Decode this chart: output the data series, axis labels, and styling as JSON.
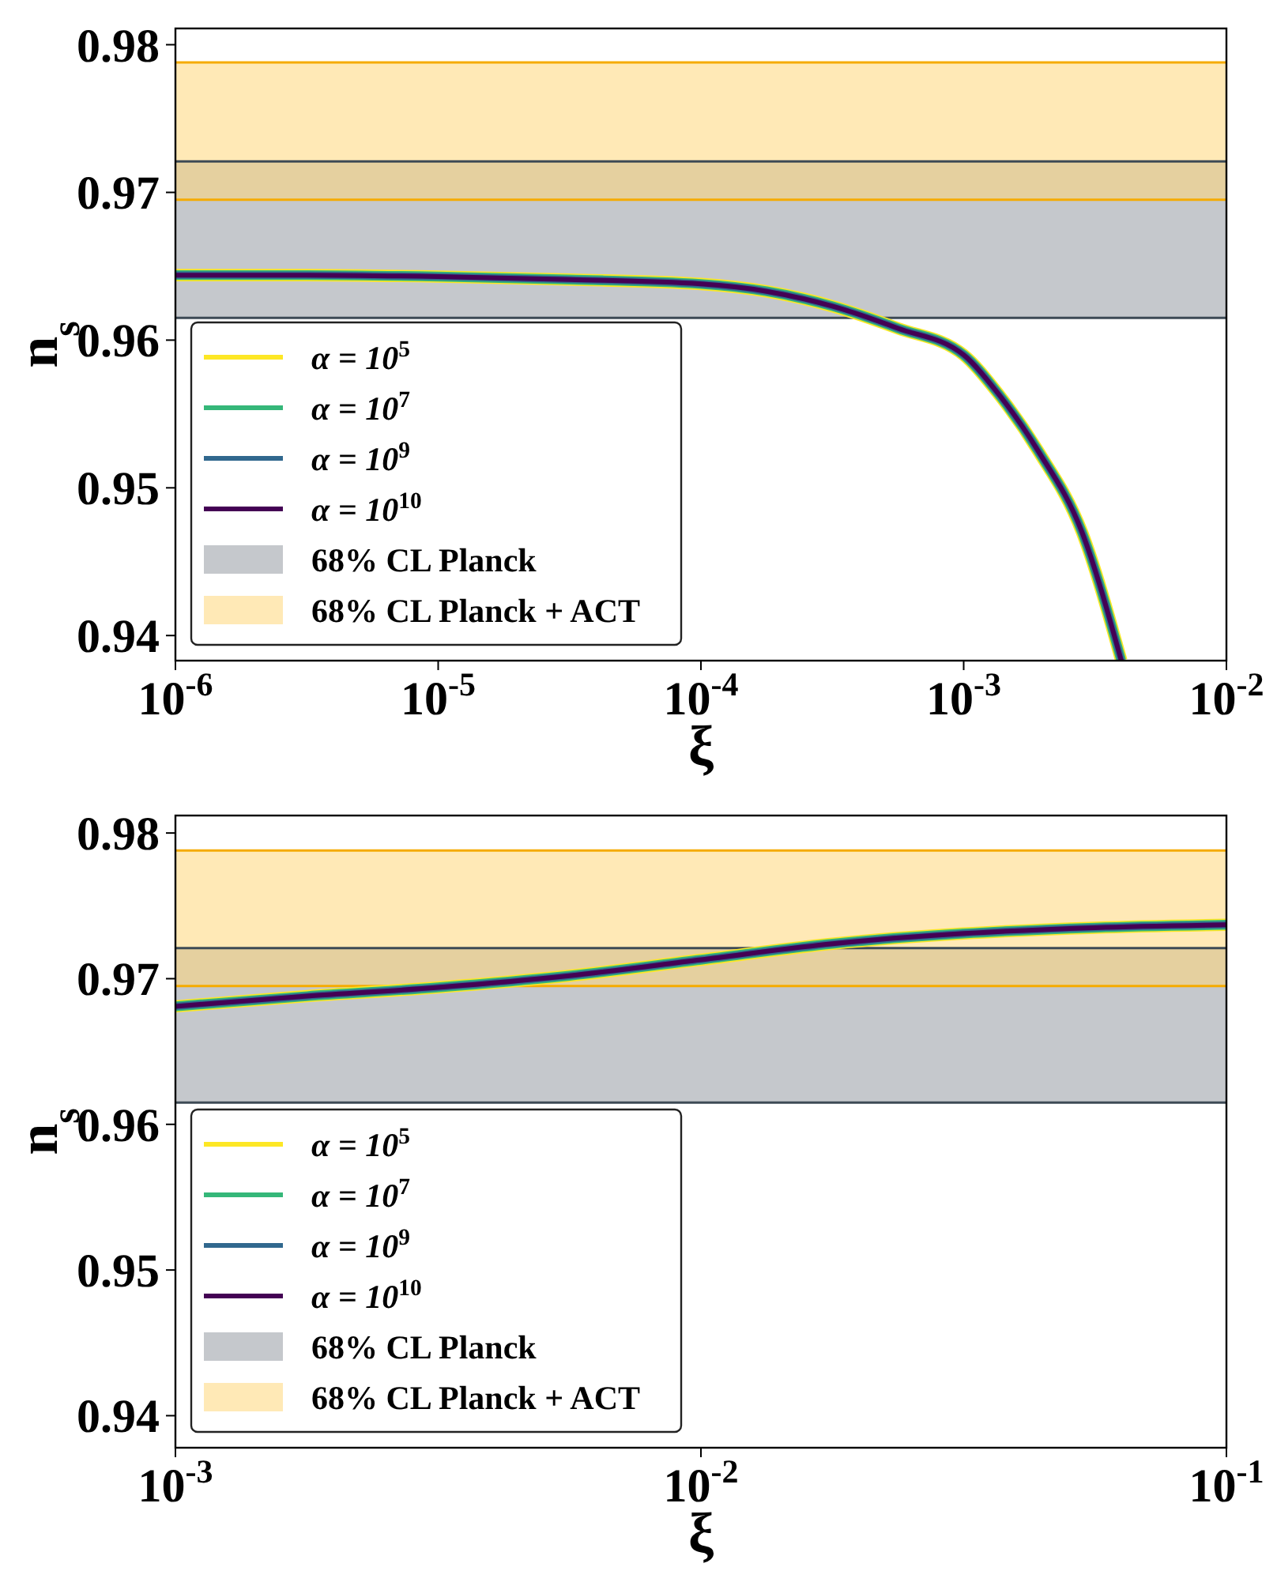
{
  "chart_data": [
    {
      "type": "line",
      "xlabel": "ξ",
      "ylabel": "n$_{s}$",
      "log": "x",
      "grid": false,
      "legend": "lower left",
      "line_style": "solid",
      "ref_lines": [
        {
          "axis": "y",
          "value": 0.9615,
          "color": "#3d4a55"
        },
        {
          "axis": "y",
          "value": 0.9721,
          "color": "#3d4a55"
        },
        {
          "axis": "y",
          "value": 0.9695,
          "color": "#f5ab00"
        },
        {
          "axis": "y",
          "value": 0.9788,
          "color": "#f5ab00"
        }
      ],
      "xlim": [
        1e-06,
        0.01
      ],
      "xticks": [
        {
          "value": 1e-06,
          "label": "10$^{-6}$"
        },
        {
          "value": 1e-05,
          "label": "10$^{-5}$"
        },
        {
          "value": 0.0001,
          "label": "10$^{-4}$"
        },
        {
          "value": 0.001,
          "label": "10$^{-3}$"
        },
        {
          "value": 0.01,
          "label": "10$^{-2}$"
        }
      ],
      "ylim": [
        0.9383,
        0.9811
      ],
      "yticks": [
        0.94,
        0.95,
        0.96,
        0.97,
        0.98
      ],
      "x": [
        1e-06,
        3.16e-06,
        1e-05,
        3.16e-05,
        0.0001,
        0.000178,
        0.000316,
        0.000562,
        0.001,
        0.00135,
        0.00192,
        0.00282,
        0.00398
      ],
      "series": [
        {
          "name": "α = 10$^{5}$",
          "color": "#fde725",
          "values": [
            0.9644,
            0.9644,
            0.9643,
            0.9641,
            0.9638,
            0.9633,
            0.9623,
            0.9608,
            0.959,
            0.9564,
            0.9525,
            0.947,
            0.9383
          ]
        },
        {
          "name": "α = 10$^{7}$",
          "color": "#35b779",
          "values": [
            0.9644,
            0.9644,
            0.9643,
            0.9641,
            0.9638,
            0.9633,
            0.9623,
            0.9608,
            0.959,
            0.9564,
            0.9525,
            0.947,
            0.9383
          ]
        },
        {
          "name": "α = 10$^{9}$",
          "color": "#31688e",
          "values": [
            0.9644,
            0.9644,
            0.9643,
            0.9641,
            0.9638,
            0.9633,
            0.9623,
            0.9608,
            0.959,
            0.9564,
            0.9525,
            0.947,
            0.9383
          ]
        },
        {
          "name": "α = 10$^{10}$",
          "color": "#440154",
          "values": [
            0.9644,
            0.9644,
            0.9643,
            0.9641,
            0.9638,
            0.9633,
            0.9623,
            0.9608,
            0.959,
            0.9564,
            0.9525,
            0.947,
            0.9383
          ]
        }
      ],
      "bands": [
        {
          "axis": "y",
          "from": 0.9615,
          "to": 0.9721,
          "label": "68% CL Planck",
          "color": "#c5c8cc"
        },
        {
          "axis": "y",
          "from": 0.9695,
          "to": 0.9788,
          "label": "68% CL Planck + ACT",
          "color": "#ffd77a"
        }
      ]
    },
    {
      "type": "line",
      "xlabel": "ξ",
      "ylabel": "n$_{s}$",
      "log": "x",
      "grid": false,
      "legend": "lower left",
      "line_style": "solid",
      "ref_lines": [
        {
          "axis": "y",
          "value": 0.9615,
          "color": "#3d4a55"
        },
        {
          "axis": "y",
          "value": 0.9721,
          "color": "#3d4a55"
        },
        {
          "axis": "y",
          "value": 0.9695,
          "color": "#f5ab00"
        },
        {
          "axis": "y",
          "value": 0.9788,
          "color": "#f5ab00"
        }
      ],
      "xlim": [
        0.001,
        0.1
      ],
      "xticks": [
        {
          "value": 0.001,
          "label": "10$^{-3}$"
        },
        {
          "value": 0.01,
          "label": "10$^{-2}$"
        },
        {
          "value": 0.1,
          "label": "10$^{-1}$"
        }
      ],
      "ylim": [
        0.9378,
        0.9812
      ],
      "yticks": [
        0.94,
        0.95,
        0.96,
        0.97,
        0.98
      ],
      "x": [
        0.001,
        0.00178,
        0.00316,
        0.00562,
        0.01,
        0.0178,
        0.0316,
        0.0562,
        0.1
      ],
      "series": [
        {
          "name": "α = 10$^{5}$",
          "color": "#fde725",
          "values": [
            0.9681,
            0.9688,
            0.9694,
            0.9702,
            0.9713,
            0.9724,
            0.9731,
            0.9735,
            0.9737
          ]
        },
        {
          "name": "α = 10$^{7}$",
          "color": "#35b779",
          "values": [
            0.9681,
            0.9688,
            0.9694,
            0.9702,
            0.9713,
            0.9724,
            0.9731,
            0.9735,
            0.9737
          ]
        },
        {
          "name": "α = 10$^{9}$",
          "color": "#31688e",
          "values": [
            0.9681,
            0.9688,
            0.9694,
            0.9702,
            0.9713,
            0.9724,
            0.9731,
            0.9735,
            0.9737
          ]
        },
        {
          "name": "α = 10$^{10}$",
          "color": "#440154",
          "values": [
            0.9681,
            0.9688,
            0.9694,
            0.9702,
            0.9713,
            0.9724,
            0.9731,
            0.9735,
            0.9737
          ]
        }
      ],
      "bands": [
        {
          "axis": "y",
          "from": 0.9615,
          "to": 0.9721,
          "label": "68% CL Planck",
          "color": "#c5c8cc"
        },
        {
          "axis": "y",
          "from": 0.9695,
          "to": 0.9788,
          "label": "68% CL Planck + ACT",
          "color": "#ffd77a"
        }
      ]
    }
  ]
}
